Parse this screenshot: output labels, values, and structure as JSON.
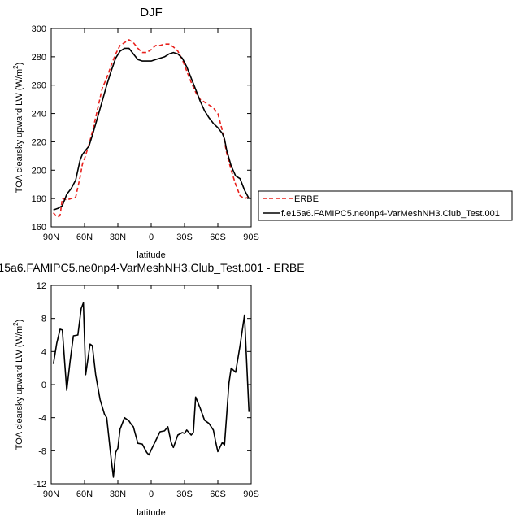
{
  "chart_data": [
    {
      "type": "line",
      "title": "DJF",
      "xlabel": "latitude",
      "ylabel": "TOA clearsky upward LW (W/m",
      "ylabel_sup": "2",
      "ylabel_close": ")",
      "xlim": [
        90,
        -90
      ],
      "ylim": [
        160,
        300
      ],
      "x_ticks": [
        90,
        60,
        30,
        0,
        -30,
        -60,
        -90
      ],
      "x_tick_labels": [
        "90N",
        "60N",
        "30N",
        "0",
        "30S",
        "60S",
        "90S"
      ],
      "y_ticks": [
        160,
        180,
        200,
        220,
        240,
        260,
        280,
        300
      ],
      "y_tick_labels": [
        "160",
        "180",
        "200",
        "220",
        "240",
        "260",
        "280",
        "300"
      ],
      "legend": [
        "ERBE",
        "f.e15a6.FAMIPC5.ne0np4-VarMeshNH3.Club_Test.001"
      ],
      "series": [
        {
          "name": "ERBE",
          "color": "#e8201c",
          "dash": "dashed",
          "x": [
            88,
            86,
            84,
            82,
            80,
            76,
            72,
            68,
            64,
            62,
            60,
            58,
            56,
            52,
            48,
            44,
            40,
            36,
            32,
            28,
            24,
            20,
            16,
            12,
            8,
            4,
            0,
            -4,
            -8,
            -12,
            -16,
            -20,
            -24,
            -28,
            -32,
            -36,
            -40,
            -44,
            -48,
            -52,
            -56,
            -60,
            -64,
            -66,
            -68,
            -72,
            -76,
            -80,
            -84,
            -88
          ],
          "values": [
            170,
            168,
            167,
            168,
            180,
            179,
            180,
            181,
            195,
            204,
            208,
            213,
            218,
            230,
            244,
            258,
            265,
            274,
            282,
            288,
            290,
            292,
            290,
            286,
            283,
            283,
            285,
            288,
            288,
            289,
            289,
            287,
            284,
            278,
            270,
            262,
            255,
            250,
            248,
            246,
            244,
            240,
            228,
            220,
            212,
            200,
            190,
            182,
            180,
            181
          ]
        },
        {
          "name": "f.e15a6.FAMIPC5.ne0np4-VarMeshNH3.Club_Test.001",
          "color": "#000000",
          "dash": "solid",
          "x": [
            88,
            84,
            80,
            76,
            72,
            68,
            66,
            64,
            62,
            60,
            58,
            56,
            52,
            48,
            44,
            40,
            36,
            32,
            28,
            24,
            20,
            16,
            12,
            8,
            4,
            0,
            -4,
            -8,
            -12,
            -16,
            -20,
            -24,
            -28,
            -32,
            -36,
            -40,
            -44,
            -48,
            -52,
            -56,
            -60,
            -64,
            -66,
            -68,
            -72,
            -76,
            -80,
            -84,
            -88
          ],
          "values": [
            172,
            173,
            175,
            183,
            187,
            193,
            200,
            207,
            211,
            213,
            215,
            217,
            227,
            238,
            249,
            260,
            270,
            279,
            284,
            286,
            286,
            282,
            278,
            277,
            277,
            277,
            278,
            279,
            280,
            282,
            283,
            282,
            279,
            273,
            265,
            257,
            249,
            242,
            237,
            233,
            230,
            226,
            222,
            214,
            203,
            196,
            194,
            186,
            180
          ]
        }
      ]
    },
    {
      "type": "line",
      "title": "15a6.FAMIPC5.ne0np4-VarMeshNH3.Club_Test.001 - ERBE",
      "xlabel": "latitude",
      "ylabel": "TOA clearsky upward LW (W/m",
      "ylabel_sup": "2",
      "ylabel_close": ")",
      "xlim": [
        90,
        -90
      ],
      "ylim": [
        -12,
        12
      ],
      "x_ticks": [
        90,
        60,
        30,
        0,
        -30,
        -60,
        -90
      ],
      "x_tick_labels": [
        "90N",
        "60N",
        "30N",
        "0",
        "30S",
        "60S",
        "90S"
      ],
      "y_ticks": [
        -12,
        -8,
        -4,
        0,
        4,
        8,
        12
      ],
      "y_tick_labels": [
        "-12",
        "-8",
        "-4",
        "0",
        "4",
        "8",
        "12"
      ],
      "series": [
        {
          "color": "#000000",
          "dash": "solid",
          "x": [
            88,
            85,
            82,
            80,
            76,
            73,
            70,
            66,
            63,
            61,
            59,
            55,
            53,
            50,
            46,
            42,
            40,
            36,
            34,
            32,
            30,
            28,
            24,
            20,
            18,
            16,
            12,
            8,
            4,
            2,
            0,
            -4,
            -8,
            -12,
            -15,
            -18,
            -20,
            -24,
            -28,
            -30,
            -32,
            -36,
            -38,
            -40,
            -44,
            -48,
            -52,
            -56,
            -58,
            -60,
            -64,
            -66,
            -70,
            -72,
            -76,
            -80,
            -84,
            -88
          ],
          "values": [
            2.5,
            5,
            6.7,
            6.6,
            -0.7,
            2.8,
            5.9,
            6,
            9.2,
            9.9,
            1.2,
            4.9,
            4.7,
            1.2,
            -1.8,
            -3.6,
            -4,
            -9,
            -11.2,
            -8.2,
            -7.7,
            -5.4,
            -4,
            -4.4,
            -4.8,
            -5.1,
            -7.1,
            -7.2,
            -8.2,
            -8.5,
            -7.9,
            -6.8,
            -5.7,
            -5.6,
            -5.1,
            -7,
            -7.6,
            -6.1,
            -5.8,
            -5.9,
            -5.5,
            -6.1,
            -5.8,
            -1.5,
            -2.8,
            -4.3,
            -4.7,
            -5.5,
            -6.9,
            -8.1,
            -7,
            -7.3,
            0.2,
            2,
            1.5,
            4.7,
            8.4,
            -3.3
          ]
        }
      ]
    }
  ]
}
